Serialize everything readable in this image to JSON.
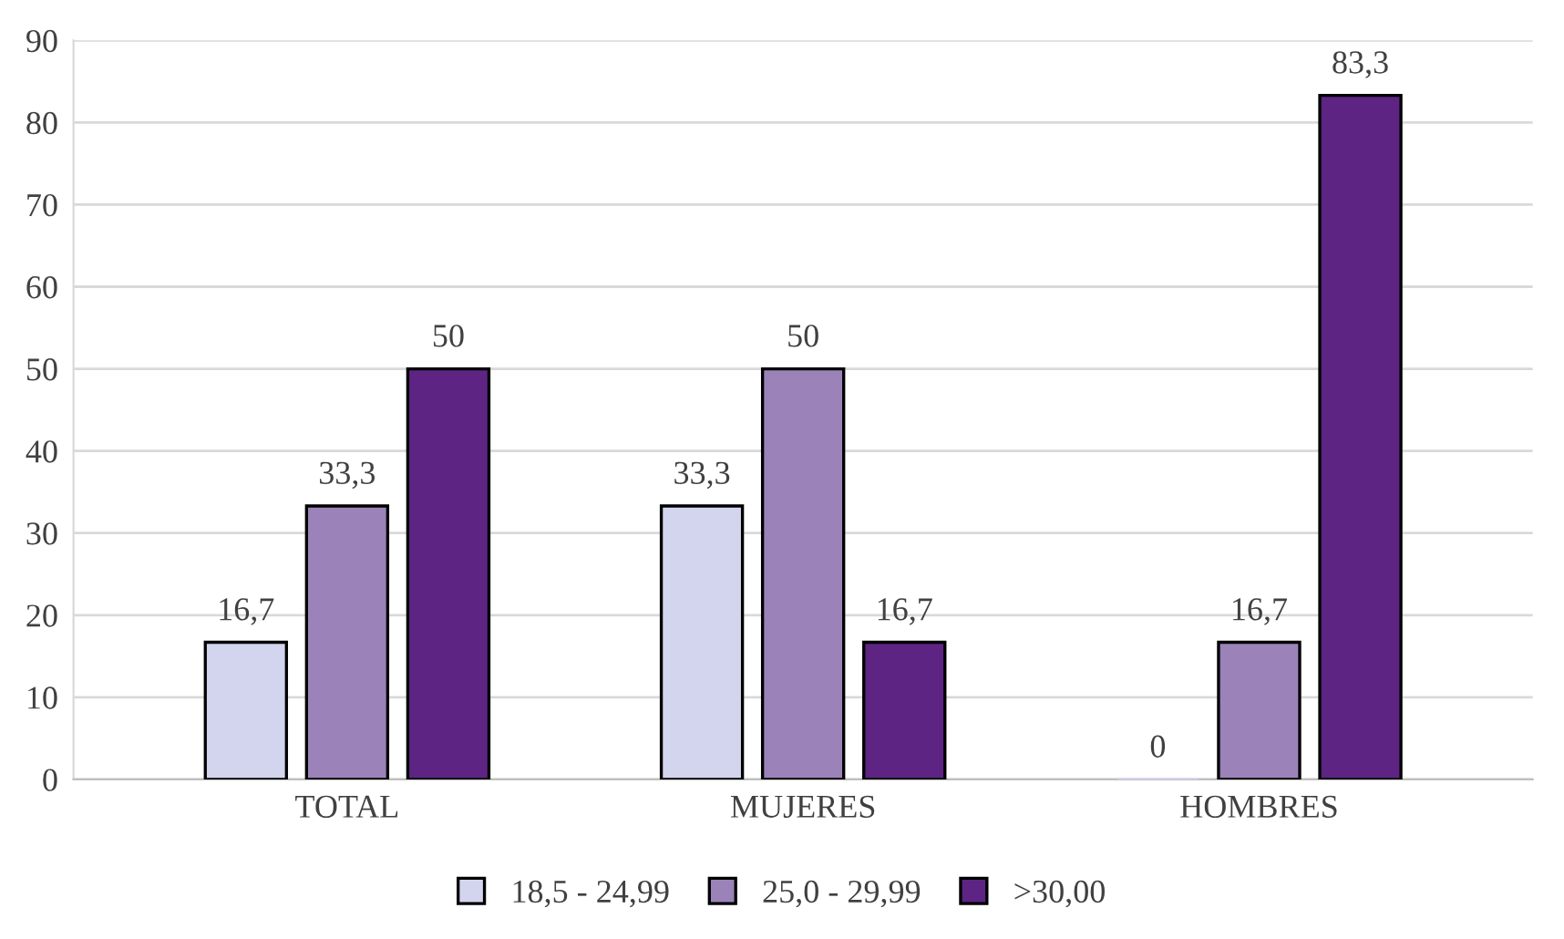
{
  "chart_data": {
    "type": "bar",
    "categories": [
      "TOTAL",
      "MUJERES",
      "HOMBRES"
    ],
    "series": [
      {
        "name": "18,5 - 24,99",
        "color": "#d3d5ee",
        "values": [
          16.7,
          33.3,
          0
        ],
        "value_labels": [
          "16,7",
          "33,3",
          "0"
        ]
      },
      {
        "name": "25,0 - 29,99",
        "color": "#9b82b9",
        "values": [
          33.3,
          50,
          16.7
        ],
        "value_labels": [
          "33,3",
          "50",
          "16,7"
        ]
      },
      {
        "name": ">30,00",
        "color": "#5d2483",
        "values": [
          50,
          16.7,
          83.3
        ],
        "value_labels": [
          "50",
          "16,7",
          "83,3"
        ]
      }
    ],
    "ylim": [
      0,
      90
    ],
    "yticks": [
      0,
      10,
      20,
      30,
      40,
      50,
      60,
      70,
      80,
      90
    ],
    "grid": "y",
    "legend": "bottom"
  }
}
